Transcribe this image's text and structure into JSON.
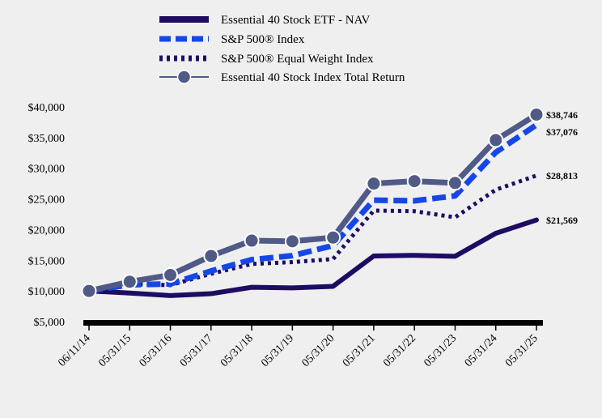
{
  "chart_data": {
    "type": "line",
    "title": "",
    "xlabel": "",
    "ylabel": "",
    "categories": [
      "06/11/14",
      "05/31/15",
      "05/31/16",
      "05/31/17",
      "05/31/18",
      "05/31/19",
      "05/31/20",
      "05/31/21",
      "05/31/22",
      "05/31/23",
      "05/31/24",
      "05/31/25"
    ],
    "y_ticks": [
      "$5,000",
      "$10,000",
      "$15,000",
      "$20,000",
      "$25,000",
      "$30,000",
      "$35,000",
      "$40,000"
    ],
    "ylim": [
      5000,
      40000
    ],
    "grid": false,
    "legend_position": "top-center",
    "series": [
      {
        "name": "Essential 40 Stock ETF - NAV",
        "color": "#1e0c63",
        "style": "solid",
        "values": [
          10000,
          9650,
          9250,
          9550,
          10600,
          10500,
          10750,
          15700,
          15800,
          15650,
          19400,
          21569
        ],
        "end_label": "$21,569"
      },
      {
        "name": "S&P 500® Index",
        "color": "#1547e8",
        "style": "dashed",
        "values": [
          10000,
          11000,
          11150,
          13250,
          15100,
          15750,
          17400,
          24800,
          24700,
          25500,
          32600,
          37076
        ],
        "end_label": "$37,076"
      },
      {
        "name": "S&P 500® Equal Weight Index",
        "color": "#1e0c63",
        "style": "dotted",
        "values": [
          10000,
          11100,
          10950,
          12800,
          14400,
          14700,
          15200,
          23100,
          23000,
          22000,
          26500,
          28813
        ],
        "end_label": "$28,813"
      },
      {
        "name": "Essential 40 Stock Index Total Return",
        "color": "#505a87",
        "style": "solid-markers",
        "values": [
          10000,
          11500,
          12600,
          15700,
          18200,
          18100,
          18700,
          27500,
          27900,
          27600,
          34600,
          38746
        ],
        "end_label": "$38,746"
      }
    ]
  }
}
